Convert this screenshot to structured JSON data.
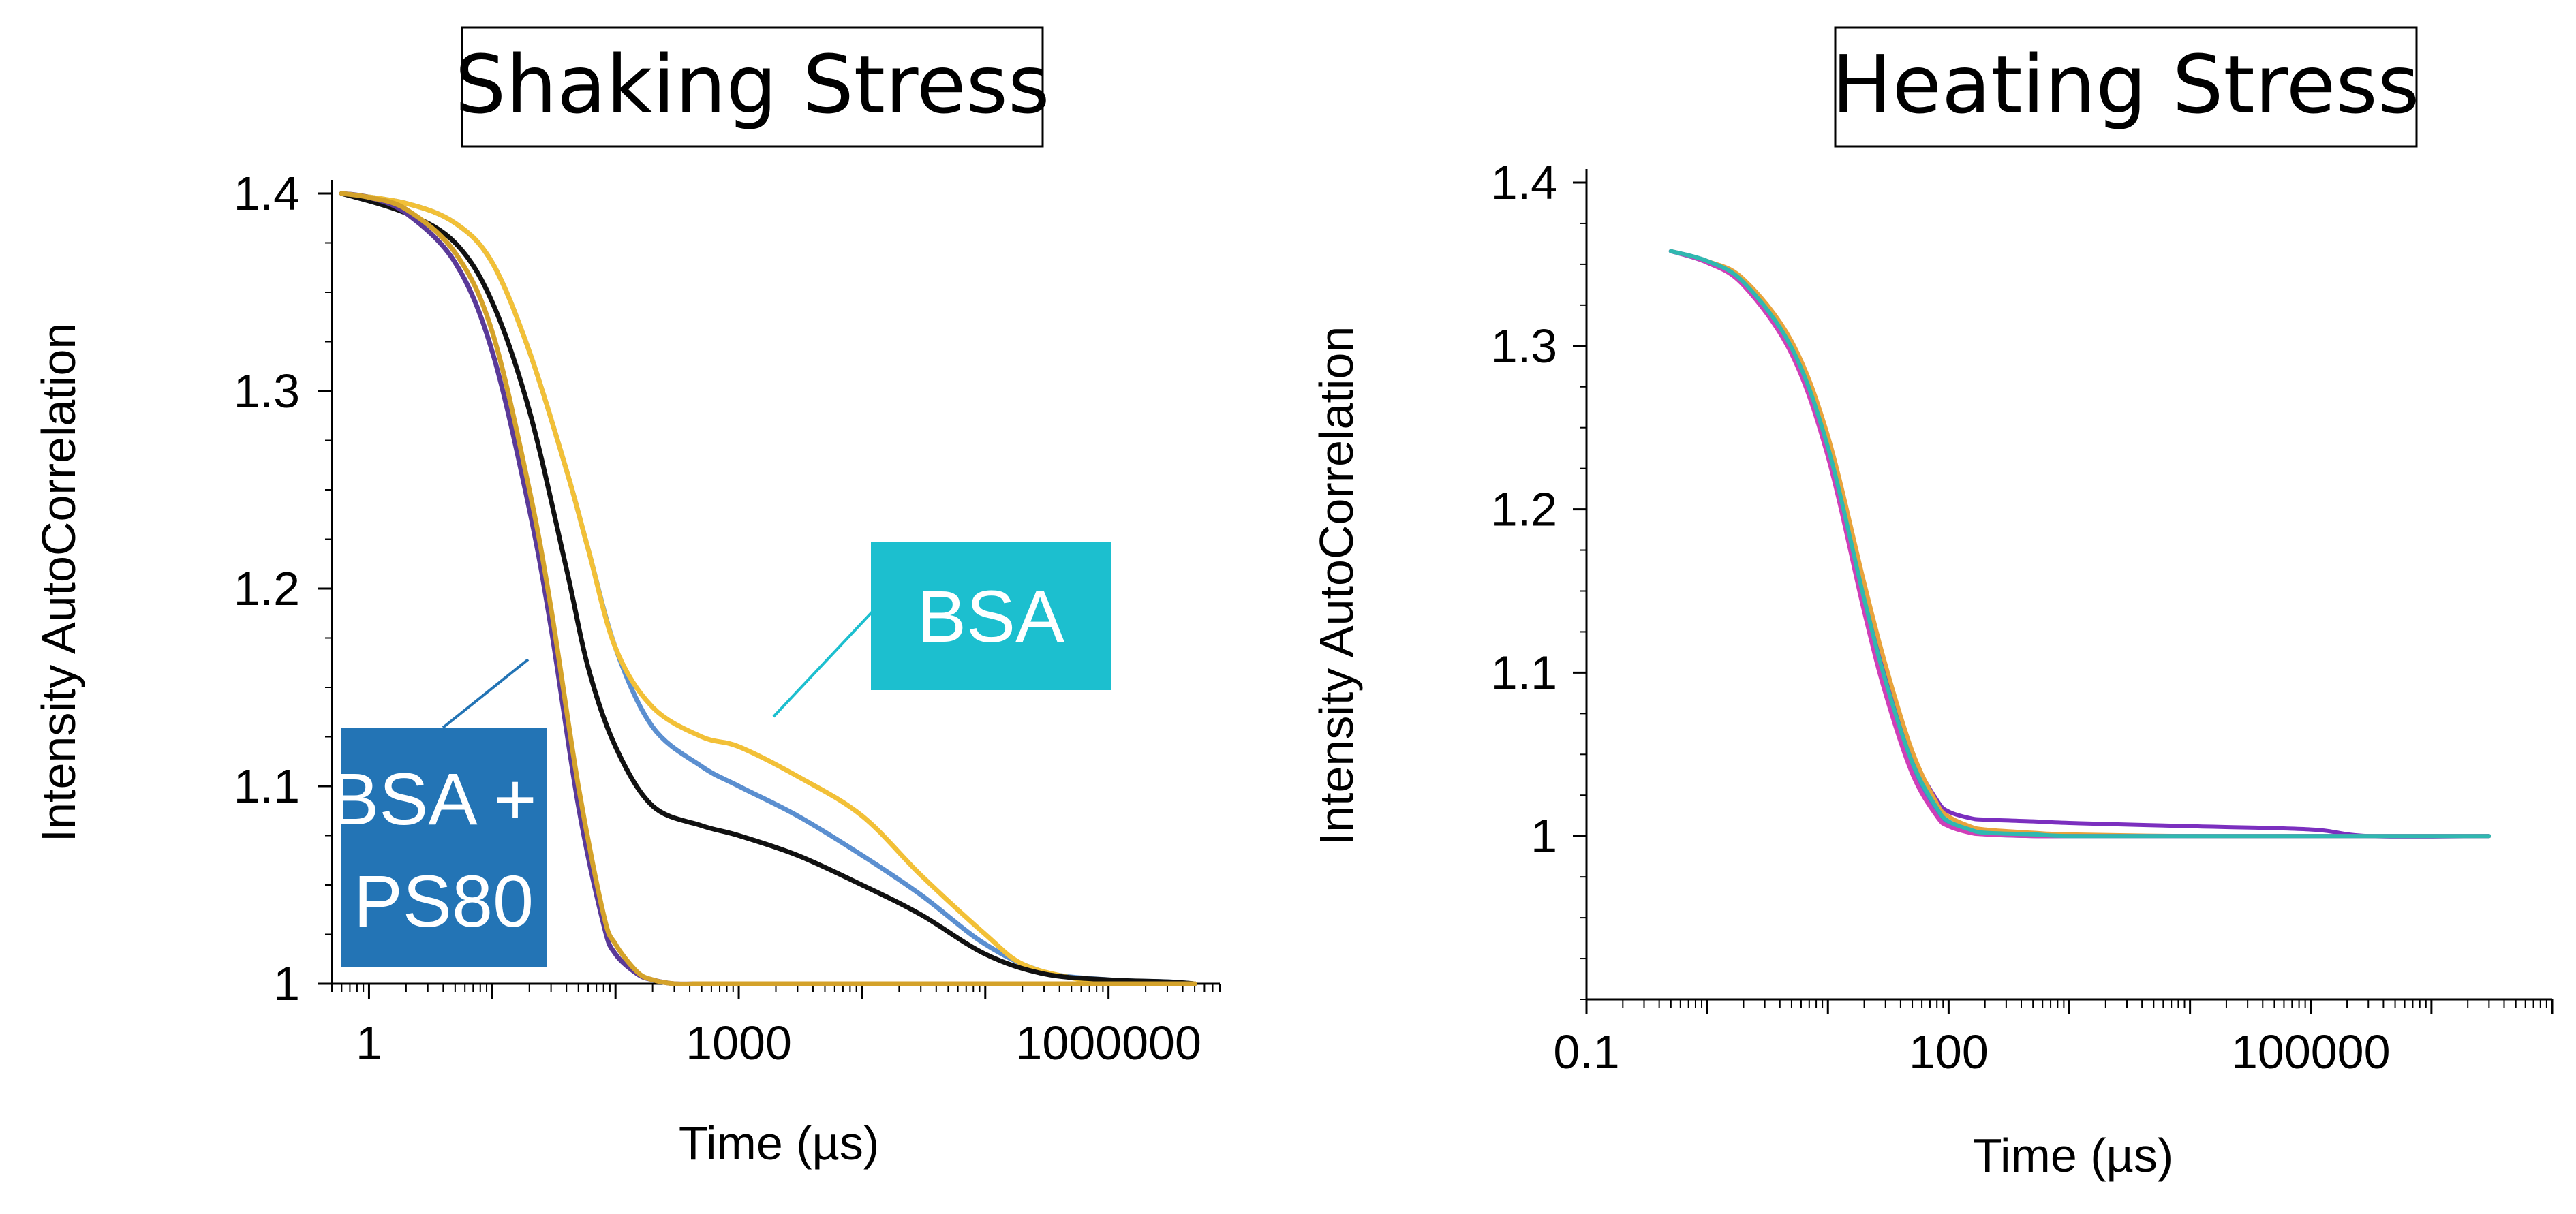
{
  "chart_data": [
    {
      "type": "line",
      "title": "Shaking Stress",
      "xlabel": "Time (µs)",
      "ylabel": "Intensity AutoCorrelation",
      "xscale": "log",
      "xlim": [
        0.5,
        8000000
      ],
      "ylim": [
        1.0,
        1.4
      ],
      "xticks": [
        1,
        1000,
        1000000
      ],
      "xtick_labels": [
        "1",
        "1000",
        "1000000"
      ],
      "yticks": [
        1.0,
        1.1,
        1.2,
        1.3,
        1.4
      ],
      "ytick_labels": [
        "1",
        "1.1",
        "1.2",
        "1.3",
        "1.4"
      ],
      "grid": false,
      "annotations": [
        {
          "text": "BSA",
          "color": "#1cbfcf",
          "points_to": "upper curves"
        },
        {
          "text": "BSA +\nPS80",
          "color": "#2374b5",
          "points_to": "fast-decaying curves"
        }
      ],
      "series": [
        {
          "color": "#5b8fd0",
          "x": [
            0.6,
            2,
            5,
            10,
            20,
            40,
            60,
            100,
            200,
            500,
            1000,
            3000,
            10000,
            30000,
            100000,
            300000,
            1000000,
            3000000,
            5000000
          ],
          "y": [
            1.4,
            1.395,
            1.385,
            1.365,
            1.32,
            1.26,
            1.22,
            1.17,
            1.13,
            1.11,
            1.1,
            1.085,
            1.065,
            1.045,
            1.02,
            1.006,
            1.002,
            1.001,
            1.0
          ]
        },
        {
          "color": "#f2c037",
          "x": [
            0.6,
            2,
            5,
            10,
            20,
            40,
            60,
            100,
            200,
            500,
            1000,
            3000,
            10000,
            30000,
            100000,
            200000,
            500000,
            1000000,
            5000000
          ],
          "y": [
            1.4,
            1.395,
            1.385,
            1.365,
            1.32,
            1.26,
            1.22,
            1.17,
            1.14,
            1.125,
            1.12,
            1.105,
            1.085,
            1.055,
            1.025,
            1.01,
            1.003,
            1.001,
            1.0
          ]
        },
        {
          "color": "#111111",
          "x": [
            0.6,
            2,
            5,
            10,
            20,
            40,
            60,
            100,
            200,
            500,
            1000,
            3000,
            10000,
            30000,
            100000,
            300000,
            1000000,
            3000000,
            5000000
          ],
          "y": [
            1.4,
            1.39,
            1.375,
            1.345,
            1.29,
            1.21,
            1.16,
            1.12,
            1.09,
            1.08,
            1.075,
            1.065,
            1.05,
            1.035,
            1.015,
            1.005,
            1.002,
            1.001,
            1.0
          ]
        },
        {
          "color": "#5a3a99",
          "x": [
            0.6,
            1,
            2,
            5,
            10,
            20,
            30,
            50,
            80,
            100,
            150,
            200,
            300,
            500,
            1000,
            5000000
          ],
          "y": [
            1.4,
            1.398,
            1.39,
            1.365,
            1.32,
            1.24,
            1.18,
            1.09,
            1.03,
            1.015,
            1.005,
            1.002,
            1.0,
            1.0,
            1.0,
            1.0
          ]
        },
        {
          "color": "#d4a22a",
          "x": [
            0.6,
            1,
            2,
            5,
            10,
            20,
            30,
            50,
            80,
            100,
            150,
            200,
            300,
            500,
            1000,
            5000000
          ],
          "y": [
            1.4,
            1.398,
            1.392,
            1.37,
            1.33,
            1.25,
            1.19,
            1.1,
            1.035,
            1.02,
            1.006,
            1.002,
            1.0,
            1.0,
            1.0,
            1.0
          ]
        }
      ]
    },
    {
      "type": "line",
      "title": "Heating Stress",
      "xlabel": "Time (µs)",
      "ylabel": "Intensity AutoCorrelation",
      "xscale": "log",
      "xlim": [
        0.1,
        10000000
      ],
      "ylim": [
        0.9,
        1.4
      ],
      "xticks": [
        0.1,
        100,
        100000
      ],
      "xtick_labels": [
        "0.1",
        "100",
        "100000"
      ],
      "yticks": [
        1.0,
        1.1,
        1.2,
        1.3,
        1.4
      ],
      "ytick_labels": [
        "1",
        "1.1",
        "1.2",
        "1.3",
        "1.4"
      ],
      "grid": false,
      "series": [
        {
          "color": "#7b2fbf",
          "x": [
            0.5,
            1,
            2,
            5,
            10,
            20,
            30,
            50,
            80,
            100,
            150,
            200,
            500,
            1000,
            10000,
            100000,
            300000,
            3000000
          ],
          "y": [
            1.358,
            1.352,
            1.34,
            1.3,
            1.24,
            1.15,
            1.1,
            1.05,
            1.022,
            1.015,
            1.011,
            1.01,
            1.009,
            1.008,
            1.006,
            1.004,
            1.0,
            1.0
          ]
        },
        {
          "color": "#e8a33b",
          "x": [
            0.5,
            1,
            2,
            5,
            10,
            20,
            30,
            50,
            80,
            100,
            150,
            200,
            500,
            1000,
            10000,
            100000,
            3000000
          ],
          "y": [
            1.358,
            1.352,
            1.341,
            1.303,
            1.245,
            1.155,
            1.105,
            1.052,
            1.02,
            1.012,
            1.006,
            1.004,
            1.002,
            1.001,
            1.0,
            1.0,
            1.0
          ]
        },
        {
          "color": "#4a7ecf",
          "x": [
            0.5,
            1,
            2,
            5,
            10,
            20,
            30,
            50,
            80,
            100,
            150,
            200,
            500,
            1000,
            10000,
            100000,
            3000000
          ],
          "y": [
            1.358,
            1.351,
            1.338,
            1.297,
            1.235,
            1.14,
            1.09,
            1.04,
            1.014,
            1.007,
            1.003,
            1.001,
            1.0,
            1.0,
            1.0,
            1.0,
            1.0
          ]
        },
        {
          "color": "#cf3fb8",
          "x": [
            0.5,
            1,
            2,
            5,
            10,
            20,
            30,
            50,
            80,
            100,
            150,
            200,
            500,
            1000,
            10000,
            100000,
            3000000
          ],
          "y": [
            1.358,
            1.351,
            1.337,
            1.295,
            1.232,
            1.137,
            1.087,
            1.038,
            1.012,
            1.006,
            1.002,
            1.001,
            1.0,
            1.0,
            1.0,
            1.0,
            1.0
          ]
        },
        {
          "color": "#2fb8b0",
          "x": [
            0.5,
            1,
            2,
            5,
            10,
            20,
            30,
            50,
            80,
            100,
            150,
            200,
            500,
            1000,
            10000,
            100000,
            3000000
          ],
          "y": [
            1.358,
            1.352,
            1.339,
            1.299,
            1.238,
            1.145,
            1.095,
            1.045,
            1.017,
            1.009,
            1.004,
            1.002,
            1.001,
            1.0,
            1.0,
            1.0,
            1.0
          ]
        }
      ]
    }
  ]
}
